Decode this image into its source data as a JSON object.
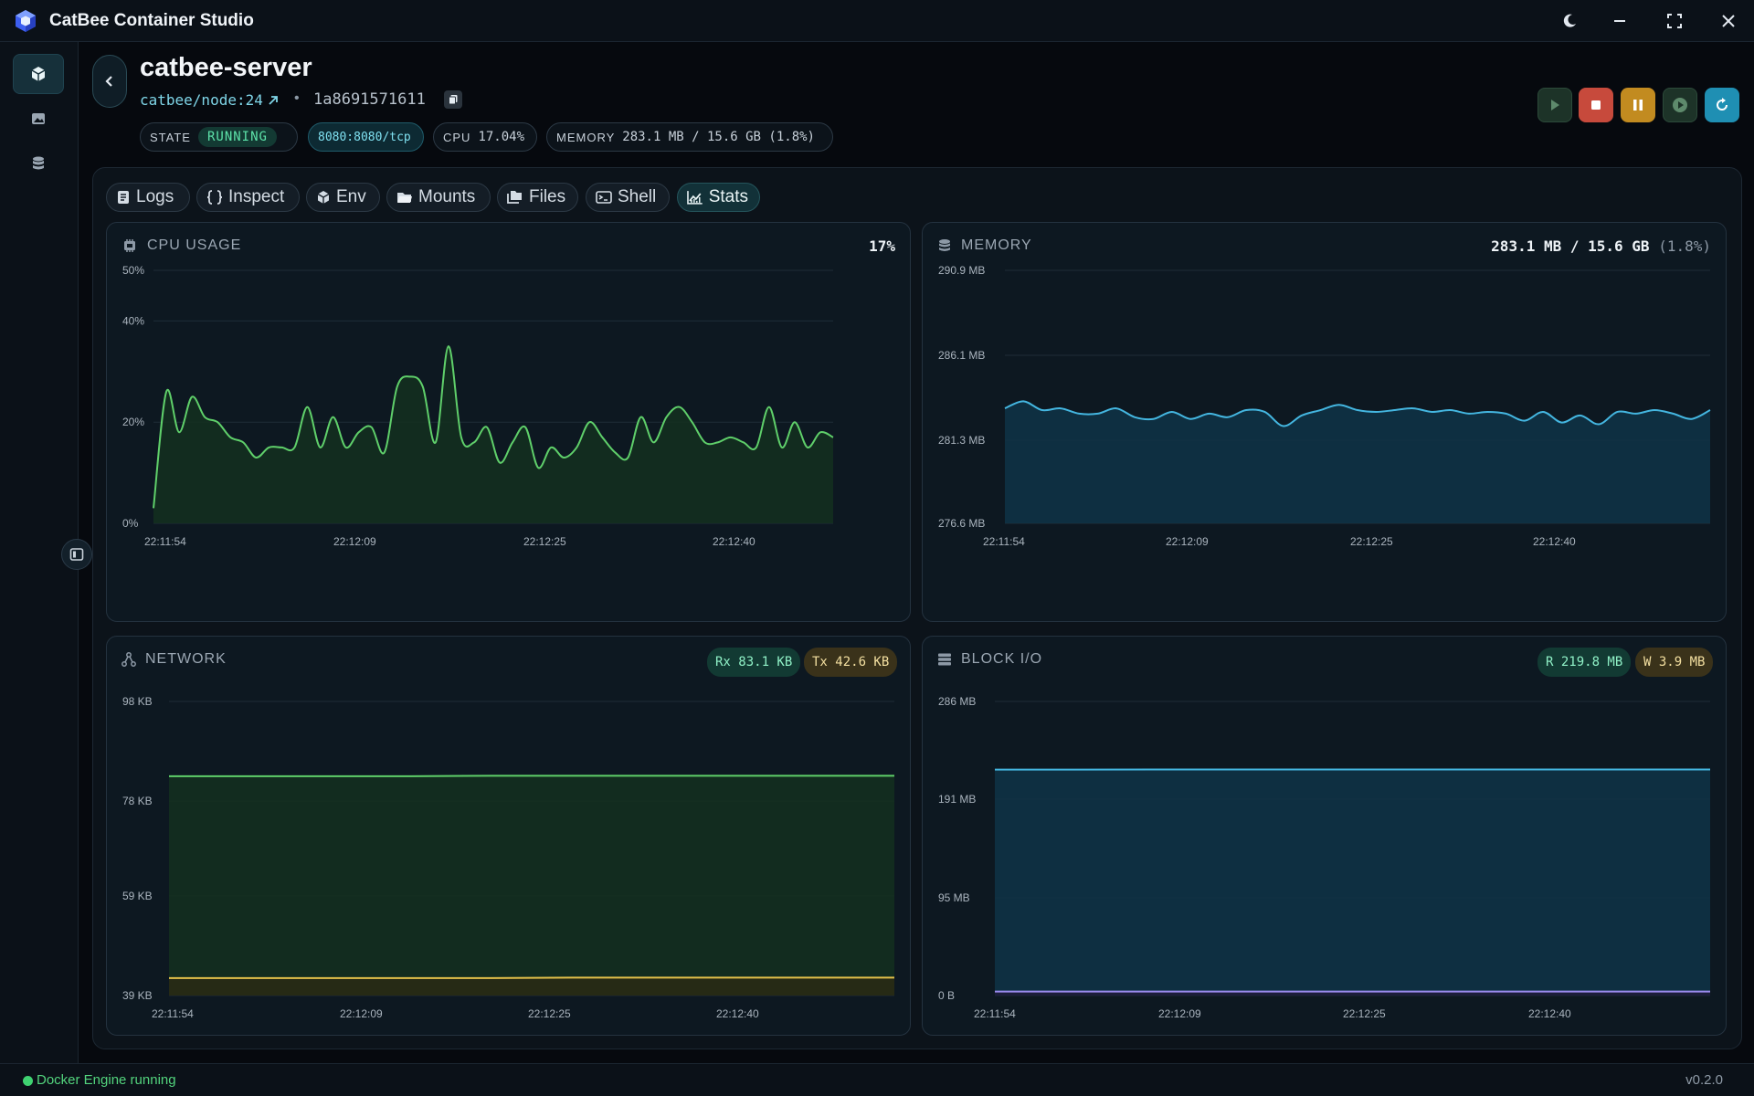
{
  "app": {
    "title": "CatBee Container Studio"
  },
  "container": {
    "name": "catbee-server",
    "image": "catbee/node:24",
    "id": "1a8691571611",
    "state_label": "STATE",
    "state": "RUNNING",
    "port": "8080:8080/tcp",
    "cpu_label": "CPU",
    "cpu": "17.04%",
    "memory_label": "MEMORY",
    "memory": "283.1 MB / 15.6 GB (1.8%)"
  },
  "tabs": [
    {
      "label": "Logs",
      "icon": "document-icon"
    },
    {
      "label": "Inspect",
      "icon": "braces-icon"
    },
    {
      "label": "Env",
      "icon": "cube-icon"
    },
    {
      "label": "Mounts",
      "icon": "folder-icon"
    },
    {
      "label": "Files",
      "icon": "files-icon"
    },
    {
      "label": "Shell",
      "icon": "terminal-icon"
    },
    {
      "label": "Stats",
      "icon": "chart-icon"
    }
  ],
  "cards": {
    "cpu": {
      "title": "CPU USAGE",
      "value": "17%"
    },
    "memory": {
      "title": "MEMORY",
      "value": "283.1 MB / 15.6 GB",
      "value_suffix": "(1.8%)"
    },
    "network": {
      "title": "NETWORK",
      "rx": "Rx 83.1 KB",
      "tx": "Tx 42.6 KB"
    },
    "blockio": {
      "title": "BLOCK I/O",
      "read": "R 219.8 MB",
      "write": "W 3.9 MB"
    }
  },
  "colors": {
    "accent_green": "#5fcf6a",
    "accent_blue": "#44b6e0",
    "accent_yellow": "#e2c04a",
    "accent_purple": "#9b8cf0",
    "stop_red": "#c74a3c",
    "pause_amber": "#c28b20",
    "restart_cyan": "#1f8fb3"
  },
  "status": {
    "engine": "Docker Engine running",
    "version": "v0.2.0"
  },
  "chart_data": [
    {
      "id": "cpu",
      "type": "area",
      "ylabels": [
        "50%",
        "40%",
        "20%",
        "0%"
      ],
      "yticks": [
        50,
        40,
        20,
        0
      ],
      "ylim": [
        0,
        50
      ],
      "xlabels": [
        "22:11:54",
        "22:12:09",
        "22:12:25",
        "22:12:40"
      ],
      "series": [
        {
          "values": [
            3,
            26,
            18,
            25,
            21,
            20,
            17,
            16,
            13,
            15,
            15,
            15,
            23,
            15,
            21,
            15,
            18,
            19,
            14,
            27,
            29,
            27,
            16,
            35,
            17,
            16,
            19,
            12,
            16,
            19,
            11,
            15,
            13,
            15,
            20,
            17,
            14,
            13,
            21,
            16,
            21,
            23,
            20,
            16,
            16,
            17,
            16,
            15,
            23,
            15,
            20,
            15,
            18,
            17
          ]
        }
      ]
    },
    {
      "id": "memory",
      "type": "area",
      "ylabels": [
        "290.9 MB",
        "286.1 MB",
        "281.3 MB",
        "276.6 MB"
      ],
      "yticks": [
        290.9,
        286.1,
        281.3,
        276.6
      ],
      "ylim": [
        276.6,
        290.9
      ],
      "xlabels": [
        "22:11:54",
        "22:12:09",
        "22:12:25",
        "22:12:40"
      ],
      "series": [
        {
          "values": [
            283.1,
            283.5,
            283.0,
            283.1,
            282.8,
            282.8,
            283.1,
            282.6,
            282.5,
            282.9,
            282.5,
            282.8,
            282.6,
            283.0,
            282.9,
            282.1,
            282.7,
            283.0,
            283.3,
            283.0,
            282.9,
            283.0,
            283.1,
            282.9,
            283.0,
            282.8,
            282.9,
            282.8,
            282.4,
            282.9,
            282.3,
            282.7,
            282.2,
            282.9,
            282.8,
            283.0,
            282.8,
            282.5,
            283.0
          ]
        }
      ]
    },
    {
      "id": "network",
      "type": "area",
      "ylabels": [
        "98 KB",
        "78 KB",
        "59 KB",
        "39 KB"
      ],
      "yticks": [
        98,
        78,
        59,
        39
      ],
      "ylim": [
        39,
        98
      ],
      "xlabels": [
        "22:11:54",
        "22:12:09",
        "22:12:25",
        "22:12:40"
      ],
      "series": [
        {
          "name": "Rx",
          "values": [
            83.0,
            83.0,
            83.0,
            83.0,
            83.1,
            83.1,
            83.1,
            83.1,
            83.1,
            83.1
          ]
        },
        {
          "name": "Tx",
          "values": [
            42.5,
            42.5,
            42.5,
            42.5,
            42.5,
            42.6,
            42.6,
            42.6,
            42.6,
            42.6
          ]
        }
      ]
    },
    {
      "id": "blockio",
      "type": "area",
      "ylabels": [
        "286 MB",
        "191 MB",
        "95 MB",
        "0 B"
      ],
      "yticks": [
        286,
        191,
        95,
        0
      ],
      "ylim": [
        0,
        286
      ],
      "xlabels": [
        "22:11:54",
        "22:12:09",
        "22:12:25",
        "22:12:40"
      ],
      "series": [
        {
          "name": "R",
          "values": [
            219.7,
            219.7,
            219.8,
            219.8,
            219.8,
            219.8,
            219.8,
            219.8,
            219.8,
            219.8
          ]
        },
        {
          "name": "W",
          "values": [
            3.9,
            3.9,
            3.9,
            3.9,
            3.9,
            3.9,
            3.9,
            3.9,
            3.9,
            3.9
          ]
        }
      ]
    }
  ]
}
